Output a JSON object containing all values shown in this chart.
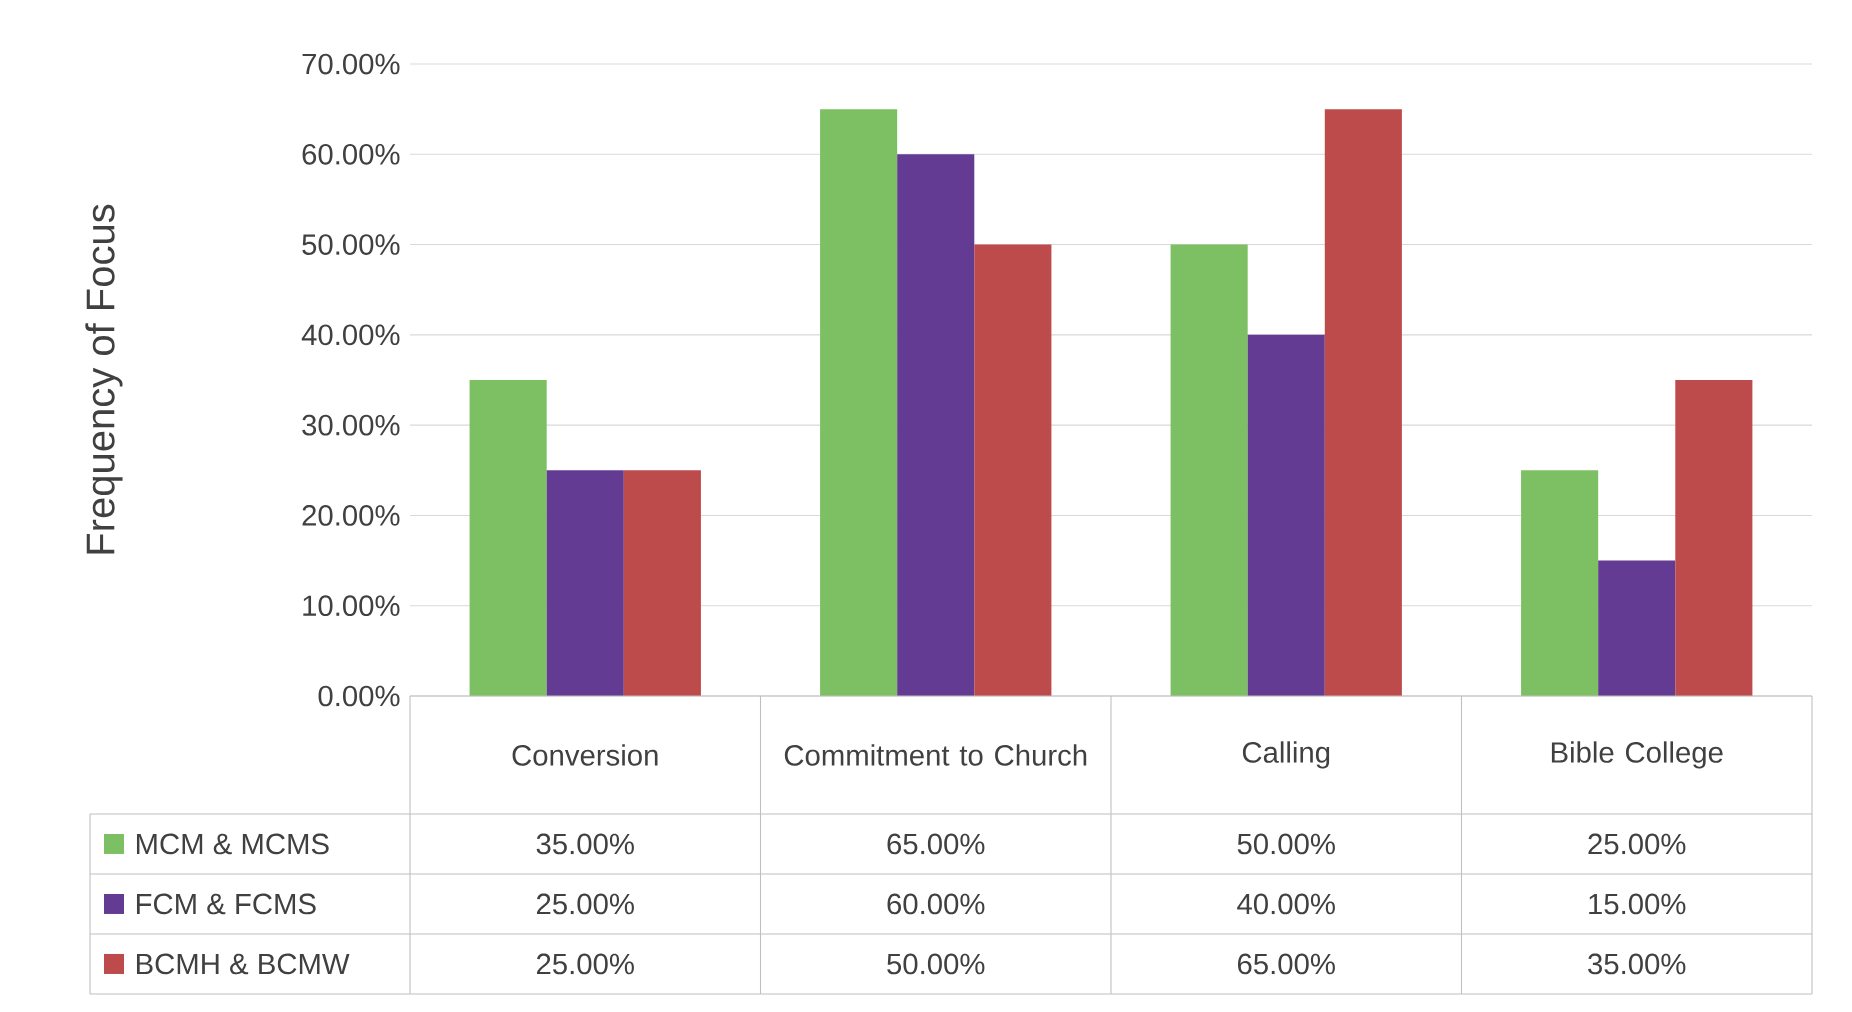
{
  "chart_data": {
    "type": "bar",
    "ylabel": "Frequency of Focus",
    "categories": [
      "Conversion",
      "Commitment to Church",
      "Calling",
      "Bible College"
    ],
    "series": [
      {
        "name": "MCM & MCMS",
        "color": "#7dbf63",
        "values": [
          35,
          65,
          50,
          25
        ],
        "value_labels": [
          "35.00%",
          "65.00%",
          "50.00%",
          "25.00%"
        ]
      },
      {
        "name": "FCM & FCMS",
        "color": "#643b92",
        "values": [
          25,
          60,
          40,
          15
        ],
        "value_labels": [
          "25.00%",
          "60.00%",
          "40.00%",
          "15.00%"
        ]
      },
      {
        "name": "BCMH & BCMW",
        "color": "#bd4b4b",
        "values": [
          25,
          50,
          65,
          35
        ],
        "value_labels": [
          "25.00%",
          "50.00%",
          "65.00%",
          "35.00%"
        ]
      }
    ],
    "ylim": [
      0,
      70
    ],
    "yticks": [
      {
        "value": 0,
        "label": "0.00%"
      },
      {
        "value": 10,
        "label": "10.00%"
      },
      {
        "value": 20,
        "label": "20.00%"
      },
      {
        "value": 30,
        "label": "30.00%"
      },
      {
        "value": 40,
        "label": "40.00%"
      },
      {
        "value": 50,
        "label": "50.00%"
      },
      {
        "value": 60,
        "label": "60.00%"
      },
      {
        "value": 70,
        "label": "70.00%"
      }
    ],
    "grid": "y",
    "legend": "bottom"
  }
}
